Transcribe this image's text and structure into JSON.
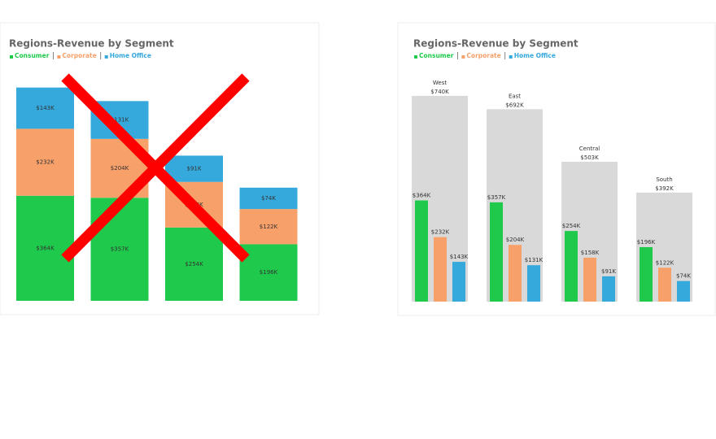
{
  "chart_data": [
    {
      "type": "stacked_bar",
      "title": "Regions-Revenue by Segment",
      "categories": [
        null,
        null,
        null,
        null
      ],
      "series": [
        {
          "name": "Consumer",
          "color": "#1ec94c",
          "values": [
            364,
            357,
            254,
            196
          ],
          "value_labels": [
            "$364K",
            "$357K",
            "$254K",
            "$196K"
          ]
        },
        {
          "name": "Corporate",
          "color": "#f7a06a",
          "values": [
            232,
            204,
            158,
            122
          ],
          "value_labels": [
            "$232K",
            "$204K",
            "$158K",
            "$122K"
          ]
        },
        {
          "name": "Home Office",
          "color": "#35a9dc",
          "values": [
            143,
            131,
            91,
            74
          ],
          "value_labels": [
            "$143K",
            "$131K",
            "$91K",
            "$74K"
          ]
        }
      ]
    },
    {
      "type": "grouped_bar",
      "title": "Regions-Revenue by Segment",
      "categories": [
        "West",
        "East",
        "Central",
        "South"
      ],
      "totals": [
        740,
        692,
        503,
        392
      ],
      "total_labels": [
        "$740K",
        "$692K",
        "$503K",
        "$392K"
      ],
      "total_color": "#d9d9d9",
      "series": [
        {
          "name": "Consumer",
          "color": "#1ec94c",
          "values": [
            364,
            357,
            254,
            196
          ],
          "value_labels": [
            "$364K",
            "$357K",
            "$254K",
            "$196K"
          ]
        },
        {
          "name": "Corporate",
          "color": "#f7a06a",
          "values": [
            232,
            204,
            158,
            122
          ],
          "value_labels": [
            "$232K",
            "$204K",
            "$158K",
            "$122K"
          ]
        },
        {
          "name": "Home Office",
          "color": "#35a9dc",
          "values": [
            143,
            131,
            91,
            74
          ],
          "value_labels": [
            "$143K",
            "$131K",
            "$91K",
            "$74K"
          ]
        }
      ]
    }
  ]
}
